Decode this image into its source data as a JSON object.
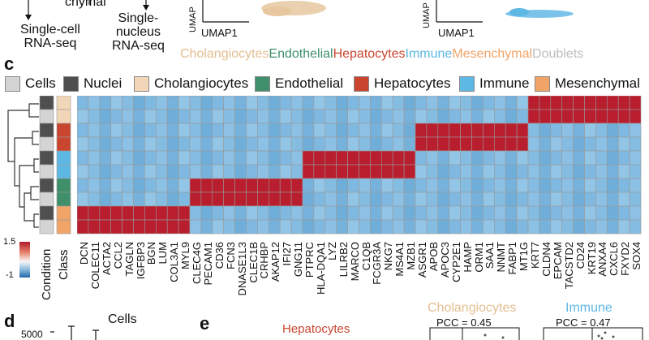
{
  "top": {
    "flow_fragment": "chymal",
    "flow_left": "Single-cell\nRNA-seq",
    "flow_right": "Single-\nnucleus\nRNA-seq",
    "umap_x_label_1": "UMAP1",
    "umap_x_label_2": "UMAP1",
    "umap_y_label_1": "UMAP",
    "umap_y_label_2": "UMAP",
    "cluster_labels": [
      {
        "text": "Cholangiocytes",
        "color": "#E3BE92"
      },
      {
        "text": "Endothelial",
        "color": "#3F8F6B"
      },
      {
        "text": "Hepatocytes",
        "color": "#C9452F"
      },
      {
        "text": "Immune",
        "color": "#5DB8E3"
      },
      {
        "text": "Mesenchymal",
        "color": "#F0A468"
      },
      {
        "text": "Doublets",
        "color": "#BDBDBD"
      }
    ]
  },
  "panel_c": {
    "letter": "c",
    "legend": [
      {
        "label": "Cells",
        "color": "#D4D4D4"
      },
      {
        "label": "Nuclei",
        "color": "#4F4F4F"
      },
      {
        "label": "Cholangiocytes",
        "color": "#F2D6B8"
      },
      {
        "label": "Endothelial",
        "color": "#3F8F6B"
      },
      {
        "label": "Hepatocytes",
        "color": "#C9452F"
      },
      {
        "label": "Immune",
        "color": "#5DB8E3"
      },
      {
        "label": "Mesenchymal",
        "color": "#F0A468"
      }
    ],
    "colorbar": {
      "max_label": "1.5",
      "min_label": "-1",
      "high": "#B2182B",
      "mid": "#F7F7F7",
      "low": "#2166AC"
    },
    "row_label_condition": "Condition",
    "row_label_class": "Class",
    "genes": [
      "DCN",
      "COLEC11",
      "ACTA2",
      "CCL2",
      "TAGLN",
      "IGFBP3",
      "BGN",
      "LUM",
      "COL3A1",
      "MYL9",
      "CLEC4G",
      "PECAM1",
      "CD36",
      "FCN3",
      "DNASE1L3",
      "CLEC1B",
      "CRHBP",
      "AKAP12",
      "IFI27",
      "GNG11",
      "PTPRC",
      "HLA-DQA1",
      "LYZ",
      "LILRB2",
      "MARCO",
      "C1QB",
      "FCGR3A",
      "NKG7",
      "MS4A1",
      "MZB1",
      "ASGR1",
      "APOB",
      "APOC3",
      "CYP2E1",
      "HAMP",
      "ORM1",
      "SAA1",
      "NNMT",
      "FABP1",
      "MT1G",
      "KRT7",
      "CLDN4",
      "EPCAM",
      "TACSTD2",
      "CD24",
      "KRT19",
      "ANXA4",
      "CXCL6",
      "FXYD2",
      "SOX4"
    ],
    "rows": [
      {
        "condition": "Nuclei",
        "class": "Cholangiocytes",
        "hi_start": 40,
        "hi_end": 49
      },
      {
        "condition": "Cells",
        "class": "Cholangiocytes",
        "hi_start": 40,
        "hi_end": 49
      },
      {
        "condition": "Nuclei",
        "class": "Hepatocytes",
        "hi_start": 30,
        "hi_end": 39
      },
      {
        "condition": "Cells",
        "class": "Hepatocytes",
        "hi_start": 30,
        "hi_end": 39
      },
      {
        "condition": "Nuclei",
        "class": "Immune",
        "hi_start": 20,
        "hi_end": 29
      },
      {
        "condition": "Cells",
        "class": "Immune",
        "hi_start": 20,
        "hi_end": 29
      },
      {
        "condition": "Nuclei",
        "class": "Endothelial",
        "hi_start": 10,
        "hi_end": 19
      },
      {
        "condition": "Cells",
        "class": "Endothelial",
        "hi_start": 10,
        "hi_end": 19
      },
      {
        "condition": "Nuclei",
        "class": "Mesenchymal",
        "hi_start": 0,
        "hi_end": 9
      },
      {
        "condition": "Cells",
        "class": "Mesenchymal",
        "hi_start": 0,
        "hi_end": 9
      }
    ]
  },
  "panel_d": {
    "letter": "d",
    "title": "Cells",
    "ytick": "5000"
  },
  "panel_e": {
    "letter": "e",
    "hepatocytes_title": "Hepatocytes",
    "hepatocytes_color": "#C9452F",
    "chol_title": "Cholangiocytes",
    "chol_color": "#E3BE92",
    "chol_pcc": "PCC = 0.45",
    "immune_title": "Immune",
    "immune_color": "#5DB8E3",
    "immune_pcc": "PCC = 0.47"
  }
}
